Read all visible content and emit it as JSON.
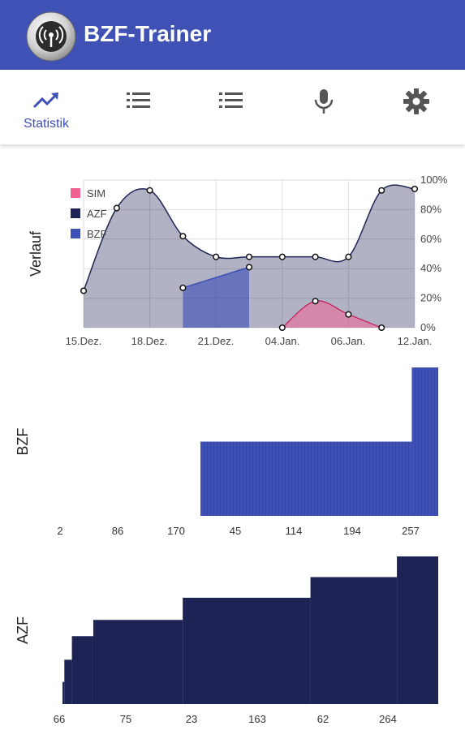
{
  "app": {
    "title": "BZF-Trainer",
    "logo_icon": "radio-antenna-icon"
  },
  "colors": {
    "primary": "#3f51b5",
    "sim": "#f06292",
    "azf": "#1f2456",
    "bzf": "#3f51b5",
    "inactive_icon": "#555555"
  },
  "tabs": [
    {
      "id": "statistik",
      "label": "Statistik",
      "icon": "trending-up-icon",
      "active": true
    },
    {
      "id": "list-1",
      "label": "",
      "icon": "list-icon",
      "active": false
    },
    {
      "id": "list-2",
      "label": "",
      "icon": "list-icon",
      "active": false
    },
    {
      "id": "microphone",
      "label": "",
      "icon": "microphone-icon",
      "active": false
    },
    {
      "id": "settings",
      "label": "",
      "icon": "gear-icon",
      "active": false
    }
  ],
  "chart_data": [
    {
      "type": "area",
      "title": "",
      "ylabel": "Verlauf",
      "x_ticks": [
        "15.Dez.",
        "18.Dez.",
        "21.Dez.",
        "04.Jan.",
        "06.Jan.",
        "12.Jan."
      ],
      "y_ticks": [
        "100%",
        "80%",
        "60%",
        "40%",
        "20%",
        "0%"
      ],
      "ylim": [
        0,
        100
      ],
      "legend": [
        "SIM",
        "AZF",
        "BZF"
      ],
      "legend_position": "top-left",
      "series": [
        {
          "name": "AZF",
          "x": [
            0,
            1,
            2,
            3,
            4,
            5,
            6,
            7,
            8,
            9,
            10
          ],
          "values": [
            25,
            81,
            93,
            62,
            48,
            48,
            48,
            48,
            48,
            93,
            94
          ]
        },
        {
          "name": "BZF",
          "x": [
            3,
            5
          ],
          "values": [
            27,
            41
          ]
        },
        {
          "name": "SIM",
          "x": [
            6,
            7,
            8,
            9
          ],
          "values": [
            0,
            18,
            9,
            0
          ]
        }
      ]
    },
    {
      "type": "bar",
      "ylabel": "BZF",
      "x_ticks": [
        "2",
        "86",
        "170",
        "45",
        "114",
        "194",
        "257"
      ],
      "segments": [
        {
          "from": 0.0,
          "to": 0.37,
          "value": 0
        },
        {
          "from": 0.37,
          "to": 0.93,
          "value": 50
        },
        {
          "from": 0.93,
          "to": 1.0,
          "value": 100
        }
      ]
    },
    {
      "type": "bar",
      "ylabel": "AZF",
      "x_ticks": [
        "66",
        "75",
        "23",
        "163",
        "62",
        "264"
      ],
      "segments": [
        {
          "from": 0.0,
          "to": 0.005,
          "value": 15
        },
        {
          "from": 0.005,
          "to": 0.025,
          "value": 30
        },
        {
          "from": 0.025,
          "to": 0.082,
          "value": 46
        },
        {
          "from": 0.082,
          "to": 0.32,
          "value": 57
        },
        {
          "from": 0.32,
          "to": 0.66,
          "value": 72
        },
        {
          "from": 0.66,
          "to": 0.89,
          "value": 86
        },
        {
          "from": 0.89,
          "to": 1.0,
          "value": 100
        }
      ]
    }
  ]
}
